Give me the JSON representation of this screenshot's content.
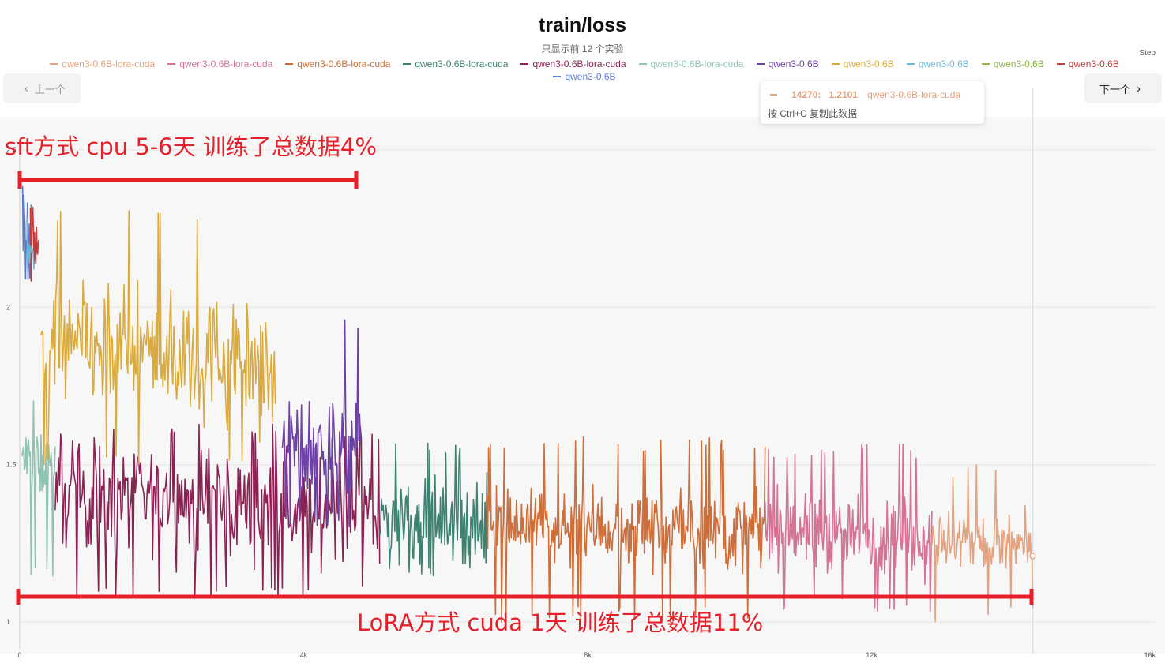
{
  "header": {
    "title": "train/loss",
    "subtitle": "只显示前 12 个实验",
    "step_label": "Step"
  },
  "legend": [
    {
      "label": "qwen3-0.6B-lora-cuda",
      "color": "#e5a27e"
    },
    {
      "label": "qwen3-0.6B-lora-cuda",
      "color": "#d57397"
    },
    {
      "label": "qwen3-0.6B-lora-cuda",
      "color": "#cf6e38"
    },
    {
      "label": "qwen3-0.6B-lora-cuda",
      "color": "#3d8270"
    },
    {
      "label": "qwen3-0.6B-lora-cuda",
      "color": "#8a2254"
    },
    {
      "label": "qwen3-0.6B-lora-cuda",
      "color": "#8fc3b4"
    },
    {
      "label": "qwen3-0.6B",
      "color": "#6d42a6"
    },
    {
      "label": "qwen3-0.6B",
      "color": "#dbaa3c"
    },
    {
      "label": "qwen3-0.6B",
      "color": "#6db7d6"
    },
    {
      "label": "qwen3-0.6B",
      "color": "#8fb24a"
    },
    {
      "label": "qwen3-0.6B",
      "color": "#c23d3d"
    },
    {
      "label": "qwen3-0.6B",
      "color": "#5b78d0"
    }
  ],
  "nav": {
    "prev_label": "上一个",
    "next_label": "下一个"
  },
  "tooltip": {
    "step": "14270:",
    "value": "1.2101",
    "series": "qwen3-0.6B-lora-cuda",
    "hint": "按 Ctrl+C 复制此数据"
  },
  "annotations": {
    "top_text": "sft方式  cpu 5-6天  训练了总数据4%",
    "bottom_text": "LoRA方式  cuda  1天  训练了总数据11%",
    "color": "#e8202a"
  },
  "chart_data": {
    "type": "line",
    "title": "train/loss",
    "xlabel": "Step",
    "ylabel": "",
    "xlim": [
      0,
      16000
    ],
    "ylim": [
      0.9,
      2.6
    ],
    "x_ticks": [
      {
        "value": 0,
        "label": "0"
      },
      {
        "value": 4000,
        "label": "4k"
      },
      {
        "value": 8000,
        "label": "8k"
      },
      {
        "value": 12000,
        "label": "12k"
      },
      {
        "value": 16000,
        "label": "16k"
      }
    ],
    "y_ticks": [
      {
        "value": 1,
        "label": "1"
      },
      {
        "value": 1.5,
        "label": "1.5"
      },
      {
        "value": 2,
        "label": "2"
      },
      {
        "value": 2.5,
        "label": "2.5"
      }
    ],
    "grid": "horizontal",
    "hover_x": 14270,
    "series": [
      {
        "color": "#8fc3b4",
        "x_range": [
          30,
          500
        ],
        "level": 1.5,
        "spread": 0.11,
        "min": 1.14,
        "max": 1.73,
        "n": 40
      },
      {
        "color": "#8a2254",
        "x_range": [
          500,
          5070
        ],
        "level": 1.38,
        "spread": 0.16,
        "min": 1.07,
        "max": 1.63,
        "n": 300
      },
      {
        "color": "#6d42a6",
        "x_range": [
          3700,
          4800
        ],
        "level": 1.56,
        "spread": 0.16,
        "min": 1.3,
        "max": 1.97,
        "n": 90
      },
      {
        "color": "#dbaa3c",
        "x_range": [
          300,
          3600
        ],
        "level": 1.85,
        "spread": 0.2,
        "min": 1.48,
        "max": 2.32,
        "n": 240
      },
      {
        "color": "#5b78d0",
        "x_range": [
          40,
          160
        ],
        "level": 2.2,
        "spread": 0.15,
        "min": 1.98,
        "max": 2.4,
        "n": 14
      },
      {
        "color": "#c23d3d",
        "x_range": [
          150,
          270
        ],
        "level": 2.2,
        "spread": 0.15,
        "min": 1.98,
        "max": 2.43,
        "n": 14
      },
      {
        "color": "#6db7d6",
        "x_range": [
          100,
          200
        ],
        "level": 2.15,
        "spread": 0.1,
        "min": 2.0,
        "max": 2.3,
        "n": 8
      },
      {
        "color": "#3d8270",
        "x_range": [
          5070,
          6580
        ],
        "level": 1.32,
        "spread": 0.13,
        "min": 1.14,
        "max": 1.57,
        "n": 120
      },
      {
        "color": "#cf6e38",
        "x_range": [
          6580,
          10500
        ],
        "level": 1.3,
        "spread": 0.12,
        "min": 1.0,
        "max": 1.59,
        "n": 320
      },
      {
        "color": "#d57397",
        "x_range": [
          10500,
          12850
        ],
        "level": 1.28,
        "spread": 0.12,
        "min": 1.03,
        "max": 1.57,
        "n": 190
      },
      {
        "color": "#e5a27e",
        "x_range": [
          12850,
          14270
        ],
        "level": 1.25,
        "spread": 0.1,
        "min": 1.0,
        "max": 1.5,
        "n": 120
      }
    ]
  }
}
